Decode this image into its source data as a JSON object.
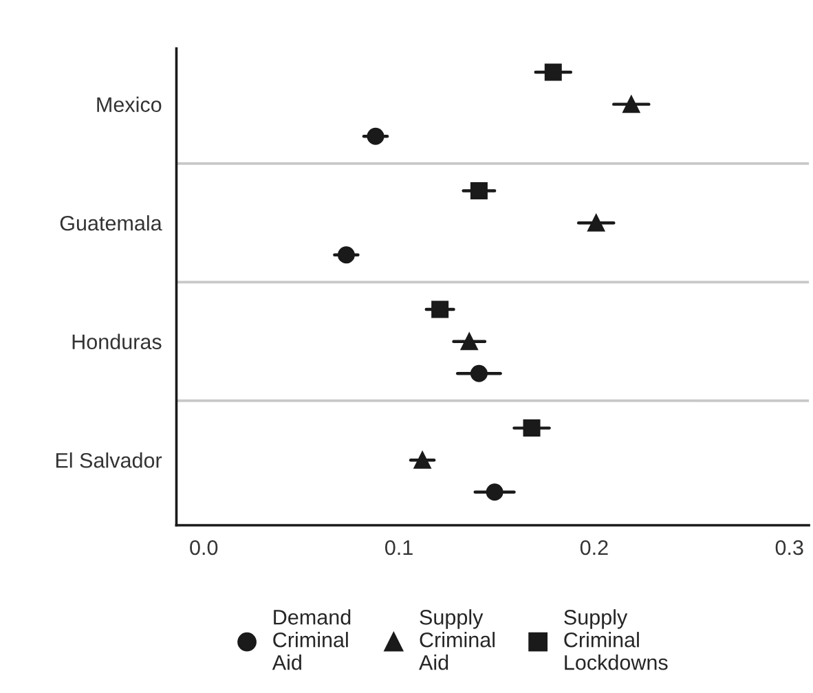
{
  "chart_data": {
    "type": "scatter",
    "orientation": "horizontal",
    "categories": [
      "Mexico",
      "Guatemala",
      "Honduras",
      "El Salvador"
    ],
    "series": [
      {
        "name": "Demand\nCriminal\nAid",
        "color": "#1a1a1a",
        "marker": "circle",
        "values": [
          0.088,
          0.073,
          0.141,
          0.149
        ],
        "errors": [
          0.006,
          0.006,
          0.011,
          0.01
        ]
      },
      {
        "name": "Supply\nCriminal\nAid",
        "color": "#1a1a1a",
        "marker": "triangle",
        "values": [
          0.219,
          0.201,
          0.136,
          0.112
        ],
        "errors": [
          0.009,
          0.009,
          0.008,
          0.006
        ]
      },
      {
        "name": "Supply\nCriminal\nLockdowns",
        "color": "#1a1a1a",
        "marker": "square",
        "values": [
          0.179,
          0.141,
          0.121,
          0.168
        ],
        "errors": [
          0.009,
          0.008,
          0.007,
          0.009
        ]
      }
    ],
    "xlim": [
      -0.014,
      0.31
    ],
    "xticks": [
      {
        "value": 0,
        "label": "0.0"
      },
      0.1,
      0.2,
      0.3
    ],
    "grid": "y",
    "legend": "bottom"
  }
}
